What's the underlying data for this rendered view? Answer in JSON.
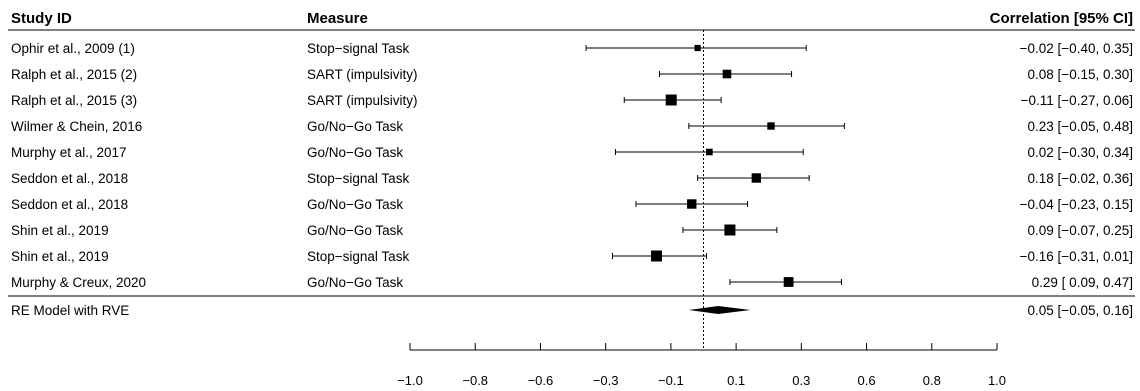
{
  "chart_data": {
    "type": "forest",
    "title": "",
    "columns": {
      "study": "Study ID",
      "measure": "Measure",
      "estimate": "Correlation [95% CI]"
    },
    "studies": [
      {
        "study": "Ophir et al., 2009 (1)",
        "measure": "Stop−signal Task",
        "r": -0.02,
        "lower": -0.4,
        "upper": 0.35,
        "label": "−0.02 [−0.40, 0.35]",
        "weight": 0.4
      },
      {
        "study": "Ralph et al., 2015 (2)",
        "measure": "SART (impulsivity)",
        "r": 0.08,
        "lower": -0.15,
        "upper": 0.3,
        "label": "0.08 [−0.15, 0.30]",
        "weight": 0.7
      },
      {
        "study": "Ralph et al., 2015 (3)",
        "measure": "SART (impulsivity)",
        "r": -0.11,
        "lower": -0.27,
        "upper": 0.06,
        "label": "−0.11 [−0.27, 0.06]",
        "weight": 1.0
      },
      {
        "study": "Wilmer & Chein, 2016",
        "measure": "Go/No−Go Task",
        "r": 0.23,
        "lower": -0.05,
        "upper": 0.48,
        "label": "0.23 [−0.05, 0.48]",
        "weight": 0.55
      },
      {
        "study": "Murphy et al., 2017",
        "measure": "Go/No−Go Task",
        "r": 0.02,
        "lower": -0.3,
        "upper": 0.34,
        "label": "0.02 [−0.30, 0.34]",
        "weight": 0.45
      },
      {
        "study": "Seddon et al., 2018",
        "measure": "Stop−signal Task",
        "r": 0.18,
        "lower": -0.02,
        "upper": 0.36,
        "label": "0.18 [−0.02, 0.36]",
        "weight": 0.8
      },
      {
        "study": "Seddon et al., 2018",
        "measure": "Go/No−Go Task",
        "r": -0.04,
        "lower": -0.23,
        "upper": 0.15,
        "label": "−0.04 [−0.23, 0.15]",
        "weight": 0.8
      },
      {
        "study": "Shin et al., 2019",
        "measure": "Go/No−Go Task",
        "r": 0.09,
        "lower": -0.07,
        "upper": 0.25,
        "label": "0.09 [−0.07, 0.25]",
        "weight": 1.0
      },
      {
        "study": "Shin et al., 2019",
        "measure": "Stop−signal Task",
        "r": -0.16,
        "lower": -0.31,
        "upper": 0.01,
        "label": "−0.16 [−0.31, 0.01]",
        "weight": 1.0
      },
      {
        "study": "Murphy & Creux, 2020",
        "measure": "Go/No−Go Task",
        "r": 0.29,
        "lower": 0.09,
        "upper": 0.47,
        "label": "0.29 [ 0.09, 0.47]",
        "weight": 0.85
      }
    ],
    "summary": {
      "label": "RE Model with RVE",
      "r": 0.05,
      "lower": -0.05,
      "upper": 0.16,
      "text": "0.05 [−0.05, 0.16]"
    },
    "reference_line": 0,
    "x_ticks": [
      {
        "value": -1.0,
        "label": "−1.0"
      },
      {
        "value": -0.8,
        "label": "−0.8"
      },
      {
        "value": -0.6,
        "label": "−0.6"
      },
      {
        "value": -0.3,
        "label": "−0.3"
      },
      {
        "value": -0.1,
        "label": "−0.1"
      },
      {
        "value": 0.1,
        "label": "0.1"
      },
      {
        "value": 0.3,
        "label": "0.3"
      },
      {
        "value": 0.6,
        "label": "0.6"
      },
      {
        "value": 0.8,
        "label": "0.8"
      },
      {
        "value": 1.0,
        "label": "1.0"
      }
    ],
    "xlim": [
      -1.0,
      1.0
    ]
  }
}
